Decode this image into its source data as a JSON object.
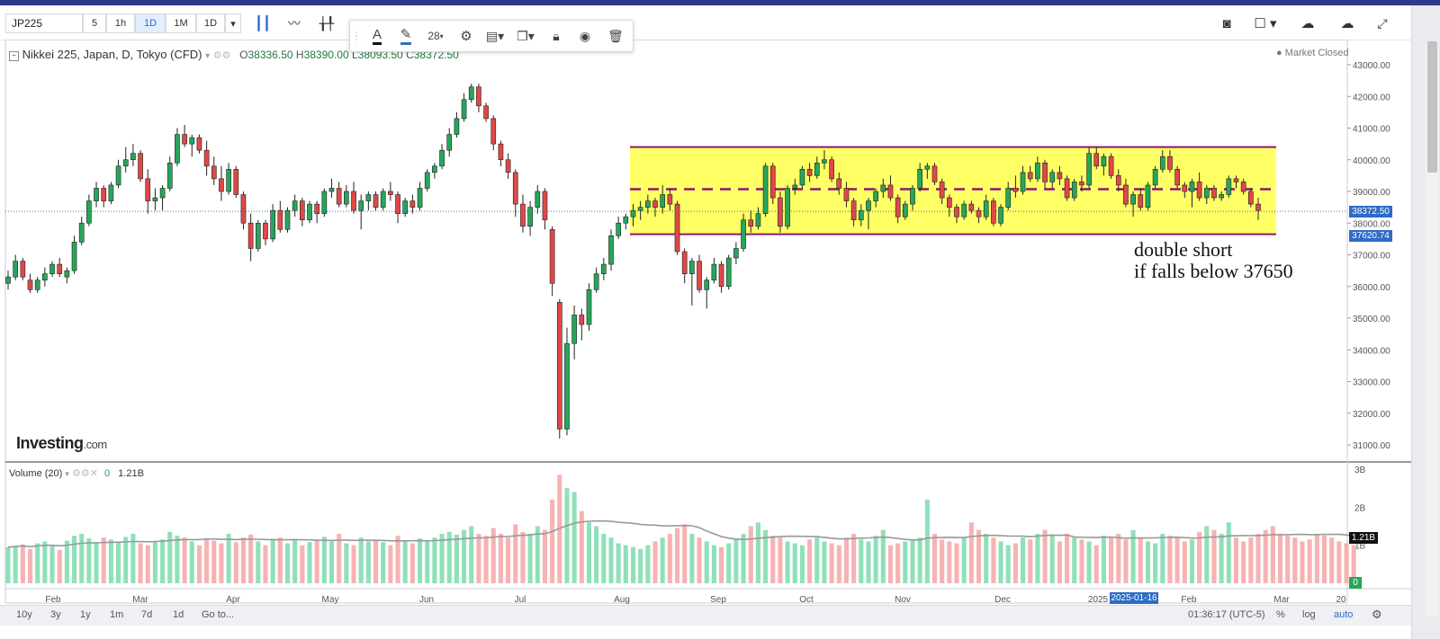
{
  "toolbar": {
    "symbol": "JP225",
    "intervals": [
      "5",
      "1h",
      "1D",
      "1M",
      "1D"
    ],
    "active_interval": "1D"
  },
  "drawing_toolbar": {
    "font_size": "28"
  },
  "legend": {
    "instrument": "Nikkei 225, Japan, D, Tokyo (CFD)",
    "open_label": "O",
    "open": "38336.50",
    "high_label": "H",
    "high": "38390.00",
    "low_label": "L",
    "low": "38093.50",
    "close_label": "C",
    "close": "38372.50"
  },
  "market_status": "Market Closed",
  "price_axis": {
    "ticks": [
      "43000.00",
      "42000.00",
      "41000.00",
      "40000.00",
      "39000.00",
      "38000.00",
      "37000.00",
      "36000.00",
      "35000.00",
      "34000.00",
      "33000.00",
      "32000.00",
      "31000.00"
    ],
    "current_price": "38372.50",
    "line_price": "37620.74"
  },
  "volume": {
    "label": "Volume (20)",
    "value_zero": "0",
    "value": "1.21B",
    "axis_ticks": [
      "3B",
      "2B",
      "1B"
    ],
    "current": "1.21B",
    "zero": "0"
  },
  "annotation": {
    "line1": "double short",
    "line2": "if falls below 37650"
  },
  "logo": {
    "brand": "Investing",
    "suffix": ".com"
  },
  "time_axis": {
    "labels": [
      "Feb",
      "Mar",
      "Apr",
      "May",
      "Jun",
      "Jul",
      "Aug",
      "Sep",
      "Oct",
      "Nov",
      "Dec",
      "2025",
      "Feb",
      "Mar",
      "20"
    ],
    "crosshair_date": "2025-01-16"
  },
  "bottom_bar": {
    "ranges": [
      "10y",
      "3y",
      "1y",
      "1m",
      "7d",
      "1d"
    ],
    "goto": "Go to...",
    "time": "01:36:17 (UTC-5)",
    "percent": "%",
    "log": "log",
    "auto": "auto"
  },
  "colors": {
    "up": "#26a65b",
    "down": "#e04848",
    "range_box": "#ffff66",
    "range_border": "#8b1a6b",
    "vol_up": "#8fe0b9",
    "vol_down": "#f7b2b2"
  },
  "chart_data": {
    "type": "candlestick",
    "range_box": {
      "top": 40400,
      "bottom": 37650,
      "mid": 39070
    },
    "ylim": [
      30500,
      43500
    ],
    "volume_ylim": [
      0,
      3000000000
    ],
    "volume_ma_level": 1210000000,
    "candles": [
      [
        36100,
        36500,
        35900,
        36300
      ],
      [
        36300,
        37000,
        36200,
        36800
      ],
      [
        36800,
        36900,
        36200,
        36300
      ],
      [
        36200,
        36400,
        35800,
        35900
      ],
      [
        35900,
        36300,
        35800,
        36200
      ],
      [
        36200,
        36600,
        36000,
        36400
      ],
      [
        36400,
        36800,
        36300,
        36700
      ],
      [
        36700,
        36900,
        36300,
        36400
      ],
      [
        36300,
        36600,
        36100,
        36500
      ],
      [
        36500,
        37600,
        36400,
        37400
      ],
      [
        37400,
        38200,
        37300,
        38000
      ],
      [
        38000,
        38900,
        37900,
        38700
      ],
      [
        38700,
        39300,
        38500,
        39100
      ],
      [
        39100,
        39200,
        38500,
        38700
      ],
      [
        38700,
        39300,
        38600,
        39200
      ],
      [
        39200,
        40000,
        39100,
        39800
      ],
      [
        39800,
        40400,
        39600,
        40000
      ],
      [
        40000,
        40500,
        39800,
        40200
      ],
      [
        40200,
        40300,
        39300,
        39400
      ],
      [
        39400,
        39700,
        38300,
        38700
      ],
      [
        38700,
        39100,
        38400,
        38800
      ],
      [
        38800,
        39200,
        38400,
        39100
      ],
      [
        39100,
        40100,
        39000,
        39900
      ],
      [
        39900,
        41000,
        39800,
        40800
      ],
      [
        40800,
        41100,
        40400,
        40500
      ],
      [
        40500,
        40800,
        40100,
        40700
      ],
      [
        40700,
        40800,
        40200,
        40300
      ],
      [
        40300,
        40600,
        39500,
        39800
      ],
      [
        39800,
        40100,
        39200,
        39400
      ],
      [
        39400,
        39800,
        38700,
        39000
      ],
      [
        39000,
        39900,
        38900,
        39700
      ],
      [
        39700,
        39800,
        38800,
        38900
      ],
      [
        38900,
        39000,
        37800,
        38000
      ],
      [
        38000,
        38300,
        36800,
        37200
      ],
      [
        37200,
        38100,
        37100,
        38000
      ],
      [
        38000,
        38100,
        37300,
        37500
      ],
      [
        37500,
        38600,
        37400,
        38400
      ],
      [
        38400,
        38700,
        37700,
        37800
      ],
      [
        37800,
        38500,
        37700,
        38400
      ],
      [
        38400,
        38900,
        38200,
        38700
      ],
      [
        38700,
        38800,
        37900,
        38100
      ],
      [
        38100,
        38700,
        38000,
        38600
      ],
      [
        38600,
        38700,
        38000,
        38300
      ],
      [
        38300,
        39100,
        38200,
        39000
      ],
      [
        39000,
        39400,
        38800,
        39100
      ],
      [
        39100,
        39300,
        38500,
        38600
      ],
      [
        38600,
        39200,
        38500,
        39000
      ],
      [
        39000,
        39300,
        38300,
        38400
      ],
      [
        38400,
        38900,
        37800,
        38700
      ],
      [
        38700,
        39000,
        38400,
        38900
      ],
      [
        38900,
        39000,
        38400,
        38500
      ],
      [
        38500,
        39100,
        38400,
        39000
      ],
      [
        39000,
        39300,
        38700,
        38900
      ],
      [
        38900,
        39000,
        38000,
        38300
      ],
      [
        38300,
        38800,
        38200,
        38700
      ],
      [
        38700,
        38900,
        38300,
        38500
      ],
      [
        38500,
        39300,
        38400,
        39100
      ],
      [
        39100,
        39700,
        39000,
        39600
      ],
      [
        39600,
        39900,
        39400,
        39800
      ],
      [
        39800,
        40500,
        39700,
        40300
      ],
      [
        40300,
        41000,
        40100,
        40800
      ],
      [
        40800,
        41500,
        40700,
        41300
      ],
      [
        41300,
        42100,
        41200,
        41900
      ],
      [
        41900,
        42400,
        41800,
        42300
      ],
      [
        42300,
        42400,
        41500,
        41700
      ],
      [
        41700,
        41800,
        41200,
        41300
      ],
      [
        41300,
        41400,
        40300,
        40500
      ],
      [
        40500,
        40600,
        39800,
        40000
      ],
      [
        40000,
        40200,
        39400,
        39600
      ],
      [
        39600,
        39700,
        38200,
        38600
      ],
      [
        38600,
        38900,
        37700,
        37900
      ],
      [
        37900,
        38700,
        37600,
        38500
      ],
      [
        38500,
        39200,
        38300,
        39000
      ],
      [
        39000,
        39100,
        37800,
        38100
      ],
      [
        37800,
        37900,
        35700,
        36100
      ],
      [
        35500,
        35600,
        31200,
        31500
      ],
      [
        31500,
        34700,
        31300,
        34200
      ],
      [
        34200,
        35400,
        33700,
        35100
      ],
      [
        35100,
        35300,
        34300,
        34800
      ],
      [
        34800,
        36100,
        34600,
        35900
      ],
      [
        35900,
        36600,
        35800,
        36400
      ],
      [
        36400,
        36900,
        36200,
        36700
      ],
      [
        36700,
        37800,
        36500,
        37600
      ],
      [
        37600,
        38200,
        37500,
        38000
      ],
      [
        38000,
        38300,
        37800,
        38200
      ],
      [
        38200,
        38600,
        37900,
        38400
      ],
      [
        38400,
        38700,
        38100,
        38500
      ],
      [
        38500,
        38900,
        38300,
        38700
      ],
      [
        38700,
        38800,
        38200,
        38500
      ],
      [
        38500,
        39200,
        38300,
        38900
      ],
      [
        38900,
        39100,
        38400,
        38600
      ],
      [
        38600,
        38700,
        37000,
        37100
      ],
      [
        37100,
        37200,
        36100,
        36400
      ],
      [
        36400,
        36900,
        35400,
        36800
      ],
      [
        36800,
        37000,
        35800,
        35900
      ],
      [
        35900,
        36300,
        35300,
        36200
      ],
      [
        36200,
        36900,
        36100,
        36700
      ],
      [
        36700,
        36800,
        35800,
        36000
      ],
      [
        36000,
        37000,
        35900,
        36900
      ],
      [
        36900,
        37400,
        36700,
        37200
      ],
      [
        37200,
        38300,
        37100,
        38100
      ],
      [
        38100,
        38400,
        37700,
        37900
      ],
      [
        37900,
        38500,
        37800,
        38300
      ],
      [
        38300,
        39900,
        38200,
        39800
      ],
      [
        39800,
        39900,
        38600,
        38800
      ],
      [
        38800,
        39000,
        37700,
        37900
      ],
      [
        37900,
        39200,
        37800,
        39100
      ],
      [
        39100,
        39400,
        38900,
        39200
      ],
      [
        39200,
        39800,
        39100,
        39700
      ],
      [
        39700,
        39900,
        39300,
        39500
      ],
      [
        39500,
        40100,
        39400,
        39900
      ],
      [
        39900,
        40300,
        39700,
        40000
      ],
      [
        40000,
        40100,
        39300,
        39400
      ],
      [
        39400,
        39600,
        38900,
        39100
      ],
      [
        39100,
        39300,
        38500,
        38700
      ],
      [
        38700,
        38800,
        37900,
        38100
      ],
      [
        38100,
        38600,
        37900,
        38400
      ],
      [
        38400,
        38800,
        37800,
        38700
      ],
      [
        38700,
        39100,
        38500,
        39000
      ],
      [
        39000,
        39400,
        38800,
        39200
      ],
      [
        39200,
        39500,
        38700,
        38800
      ],
      [
        38800,
        38900,
        38000,
        38200
      ],
      [
        38200,
        38700,
        38100,
        38600
      ],
      [
        38600,
        39200,
        38400,
        39100
      ],
      [
        39100,
        39900,
        39000,
        39700
      ],
      [
        39700,
        39900,
        39400,
        39800
      ],
      [
        39800,
        39900,
        39200,
        39300
      ],
      [
        39300,
        39400,
        38600,
        38800
      ],
      [
        38800,
        38900,
        38200,
        38500
      ],
      [
        38500,
        38600,
        38000,
        38200
      ],
      [
        38200,
        38700,
        38100,
        38600
      ],
      [
        38600,
        38700,
        38300,
        38400
      ],
      [
        38400,
        38500,
        38000,
        38200
      ],
      [
        38200,
        38900,
        38100,
        38700
      ],
      [
        38700,
        38800,
        37900,
        38000
      ],
      [
        38000,
        38600,
        37900,
        38500
      ],
      [
        38500,
        39300,
        38400,
        39100
      ],
      [
        39100,
        39500,
        38800,
        39000
      ],
      [
        39000,
        39800,
        38900,
        39600
      ],
      [
        39600,
        39800,
        39300,
        39400
      ],
      [
        39400,
        40100,
        39300,
        39900
      ],
      [
        39900,
        40000,
        39100,
        39300
      ],
      [
        39300,
        39700,
        39100,
        39600
      ],
      [
        39600,
        39800,
        39200,
        39400
      ],
      [
        39400,
        39500,
        38700,
        38800
      ],
      [
        38800,
        39400,
        38700,
        39300
      ],
      [
        39300,
        39500,
        39000,
        39200
      ],
      [
        39200,
        40400,
        39100,
        40200
      ],
      [
        40200,
        40400,
        39700,
        39800
      ],
      [
        39800,
        40200,
        39500,
        40100
      ],
      [
        40100,
        40200,
        39400,
        39500
      ],
      [
        39500,
        39700,
        39000,
        39200
      ],
      [
        39200,
        39400,
        38500,
        38600
      ],
      [
        38600,
        39000,
        38200,
        38900
      ],
      [
        38900,
        39100,
        38400,
        38500
      ],
      [
        38500,
        39300,
        38400,
        39200
      ],
      [
        39200,
        39800,
        39100,
        39700
      ],
      [
        39700,
        40300,
        39600,
        40100
      ],
      [
        40100,
        40300,
        39600,
        39700
      ],
      [
        39700,
        39800,
        39100,
        39200
      ],
      [
        39200,
        39300,
        38800,
        39000
      ],
      [
        39000,
        39400,
        38500,
        39300
      ],
      [
        39300,
        39600,
        38700,
        38800
      ],
      [
        38800,
        39200,
        38600,
        39100
      ],
      [
        39100,
        39200,
        38700,
        38800
      ],
      [
        38800,
        39000,
        38700,
        38900
      ],
      [
        38900,
        39500,
        38800,
        39400
      ],
      [
        39400,
        39500,
        39100,
        39300
      ],
      [
        39300,
        39400,
        38900,
        39000
      ],
      [
        39000,
        39100,
        38500,
        38600
      ],
      [
        38600,
        38800,
        38100,
        38400
      ]
    ],
    "volumes": [
      0.95,
      0.98,
      1.02,
      0.9,
      1.05,
      1.1,
      1.0,
      0.88,
      1.12,
      1.25,
      1.3,
      1.18,
      1.08,
      1.2,
      1.15,
      1.1,
      1.22,
      1.3,
      1.05,
      1.0,
      1.1,
      1.15,
      1.35,
      1.25,
      1.2,
      1.1,
      1.0,
      1.18,
      1.12,
      1.05,
      1.3,
      1.08,
      1.2,
      1.28,
      1.1,
      1.0,
      1.15,
      1.2,
      1.05,
      1.12,
      1.0,
      1.08,
      1.15,
      1.22,
      1.1,
      1.3,
      1.05,
      1.0,
      1.2,
      1.1,
      1.15,
      1.08,
      1.0,
      1.25,
      1.12,
      1.05,
      1.18,
      1.1,
      1.2,
      1.3,
      1.35,
      1.28,
      1.4,
      1.5,
      1.3,
      1.25,
      1.45,
      1.3,
      1.2,
      1.55,
      1.35,
      1.3,
      1.5,
      1.4,
      2.2,
      2.85,
      2.5,
      2.4,
      1.9,
      1.6,
      1.5,
      1.3,
      1.2,
      1.05,
      1.0,
      0.95,
      0.9,
      1.0,
      1.1,
      1.2,
      1.3,
      1.45,
      1.55,
      1.3,
      1.2,
      1.1,
      1.0,
      0.95,
      1.05,
      1.15,
      1.3,
      1.5,
      1.6,
      1.4,
      1.25,
      1.2,
      1.1,
      1.05,
      1.0,
      1.15,
      1.2,
      1.1,
      1.05,
      1.0,
      1.2,
      1.3,
      1.15,
      1.1,
      1.25,
      1.4,
      1.0,
      1.05,
      1.1,
      1.15,
      1.2,
      2.2,
      1.3,
      1.15,
      1.1,
      1.05,
      1.2,
      1.6,
      1.4,
      1.3,
      1.2,
      1.1,
      1.0,
      1.05,
      1.2,
      1.15,
      1.3,
      1.4,
      1.25,
      1.1,
      1.3,
      1.2,
      1.15,
      1.1,
      1.0,
      1.25,
      1.2,
      1.3,
      1.15,
      1.4,
      1.2,
      1.1,
      1.05,
      1.3,
      1.25,
      1.2,
      1.1,
      1.15,
      1.35,
      1.5,
      1.4,
      1.3,
      1.6,
      1.2,
      1.1,
      1.2,
      1.3,
      1.4,
      1.5,
      1.3,
      1.25,
      1.2,
      1.1,
      1.15,
      1.3,
      1.25,
      1.2,
      1.1,
      1.05,
      1.0
    ]
  }
}
